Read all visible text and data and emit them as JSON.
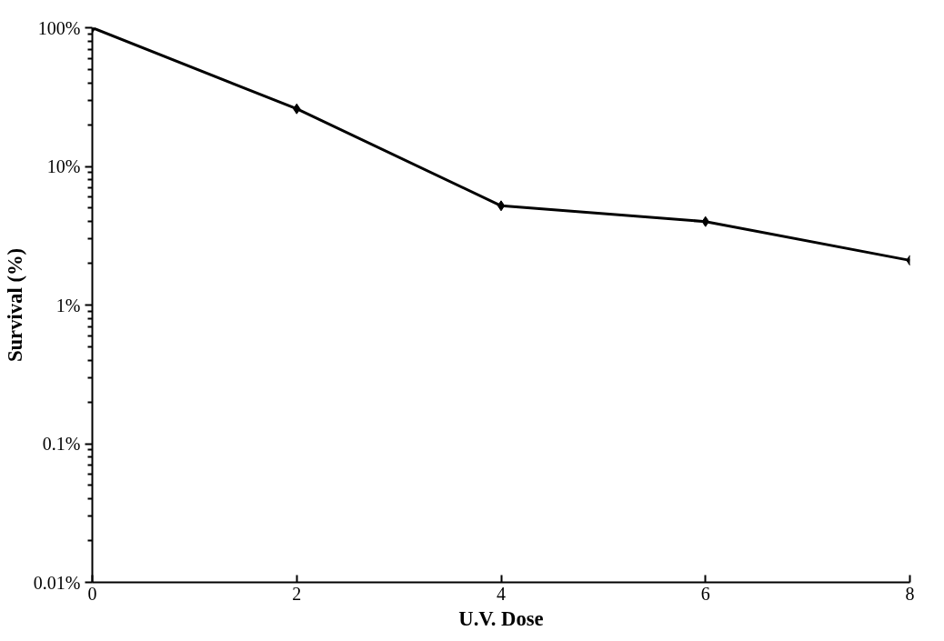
{
  "chart_data": {
    "type": "line",
    "xlabel": "U.V. Dose",
    "ylabel": "Survival (%)",
    "x": [
      0,
      2,
      4,
      6,
      8
    ],
    "series": [
      {
        "color": "#000000",
        "values": [
          100,
          26,
          5.2,
          4.0,
          2.1
        ]
      }
    ],
    "log": "y",
    "xlim": [
      0,
      8
    ],
    "xticks": [
      0,
      2,
      4,
      6,
      8
    ],
    "ylim": [
      0.01,
      100
    ],
    "yticks": [
      {
        "value": 0.01,
        "label": "0.01%"
      },
      {
        "value": 0.1,
        "label": "0.1%"
      },
      {
        "value": 1,
        "label": "1%"
      },
      {
        "value": 10,
        "label": "10%"
      },
      {
        "value": 100,
        "label": "100%"
      }
    ],
    "marker": "diamond",
    "line_style": "solid"
  }
}
